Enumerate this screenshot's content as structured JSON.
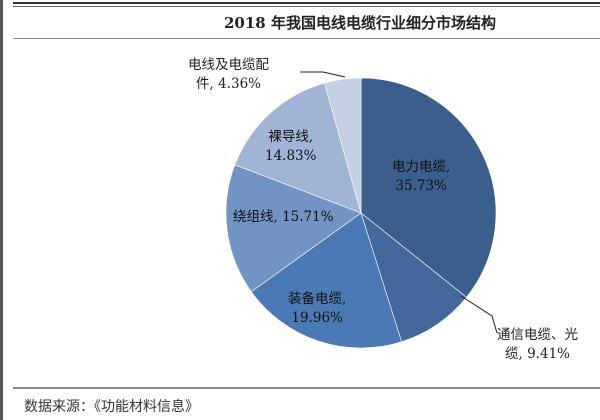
{
  "chart_data": {
    "type": "pie",
    "title": "2018 年我国电线电缆行业细分市场结构",
    "slices": [
      {
        "name": "电力电缆",
        "value": 35.73,
        "label_line1": "电力电缆,",
        "label_line2": "35.73%",
        "color": "#3b5f8d"
      },
      {
        "name": "通信电缆、光缆",
        "value": 9.41,
        "label_line1": "通信电缆、光",
        "label_line2": "缆, 9.41%",
        "color": "#43689b"
      },
      {
        "name": "装备电缆",
        "value": 19.96,
        "label_line1": "装备电缆,",
        "label_line2": "19.96%",
        "color": "#4a79b6"
      },
      {
        "name": "绕组线",
        "value": 15.71,
        "label_line1": "绕组线, 15.71%",
        "label_line2": "",
        "color": "#7294c5"
      },
      {
        "name": "裸导线",
        "value": 14.83,
        "label_line1": "裸导线,",
        "label_line2": "14.83%",
        "color": "#a2b4d6"
      },
      {
        "name": "电线及电缆配件",
        "value": 4.36,
        "label_line1": "电线及电缆配",
        "label_line2": "件, 4.36%",
        "color": "#c6d0e4"
      }
    ],
    "start_angle": "12 o'clock",
    "direction": "clockwise",
    "legend": "none"
  },
  "source": "数据来源：《功能材料信息》"
}
